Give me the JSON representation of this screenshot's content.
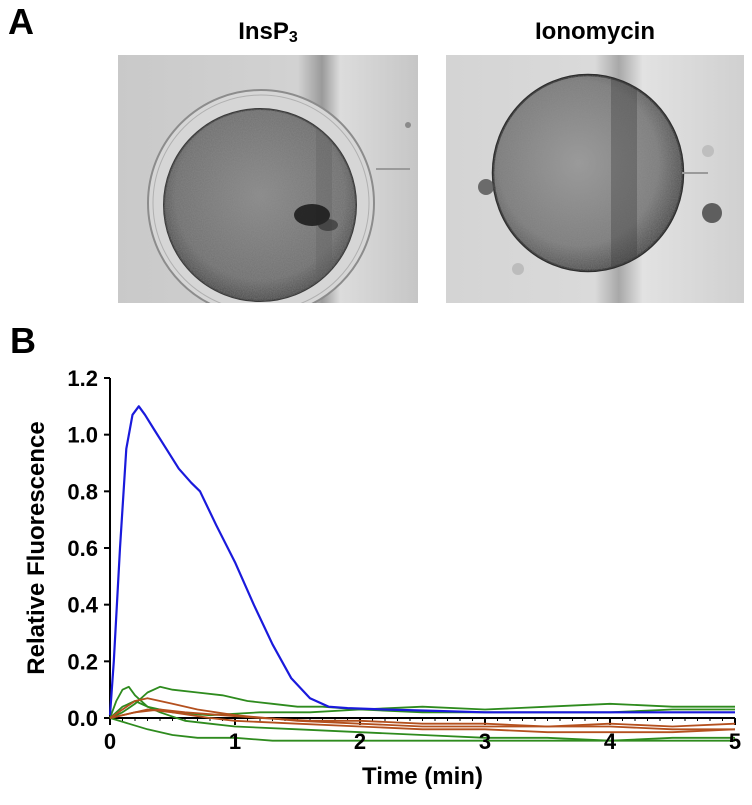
{
  "panel_a": {
    "letter": "A",
    "left_image": {
      "title": "InsP",
      "title_sub": "3"
    },
    "right_image": {
      "title": "Ionomycin"
    }
  },
  "panel_b": {
    "letter": "B"
  },
  "colors": {
    "insp3": "#1a1adc",
    "green": "#2e8b1e",
    "orange": "#b4501e",
    "axis": "#000000"
  },
  "chart_data": {
    "type": "line",
    "xlabel": "Time (min)",
    "ylabel": "Relative Fluorescence",
    "xlim": [
      0,
      5
    ],
    "ylim": [
      0,
      1.2
    ],
    "xticks": [
      "0",
      "1",
      "2",
      "3",
      "4",
      "5"
    ],
    "yticks": [
      "0.0",
      "0.2",
      "0.4",
      "0.6",
      "0.8",
      "1.0",
      "1.2"
    ],
    "grid": false,
    "series": [
      {
        "color": "#1a1adc",
        "x": [
          0,
          0.03,
          0.08,
          0.13,
          0.18,
          0.23,
          0.28,
          0.35,
          0.45,
          0.55,
          0.65,
          0.72,
          0.85,
          1.0,
          1.15,
          1.3,
          1.45,
          1.6,
          1.75,
          1.9,
          2.2,
          2.6,
          3.0,
          3.5,
          4.0,
          4.5,
          5.0
        ],
        "y": [
          0.01,
          0.2,
          0.6,
          0.95,
          1.07,
          1.1,
          1.07,
          1.02,
          0.95,
          0.88,
          0.83,
          0.8,
          0.68,
          0.55,
          0.4,
          0.26,
          0.14,
          0.07,
          0.04,
          0.035,
          0.03,
          0.025,
          0.02,
          0.02,
          0.02,
          0.02,
          0.02
        ]
      },
      {
        "color": "#2e8b1e",
        "x": [
          0,
          0.05,
          0.1,
          0.15,
          0.2,
          0.3,
          0.5,
          0.8,
          1.2,
          1.6,
          2.0,
          2.5,
          3.0,
          3.5,
          4.0,
          4.5,
          5.0
        ],
        "y": [
          0.0,
          0.06,
          0.1,
          0.11,
          0.08,
          0.04,
          0.02,
          0.01,
          0.02,
          0.02,
          0.03,
          0.04,
          0.03,
          0.04,
          0.05,
          0.04,
          0.04
        ]
      },
      {
        "color": "#2e8b1e",
        "x": [
          0,
          0.1,
          0.2,
          0.3,
          0.4,
          0.5,
          0.7,
          0.9,
          1.1,
          1.3,
          1.5,
          1.7,
          2.0,
          2.5,
          3.0,
          3.5,
          4.0,
          4.5,
          5.0
        ],
        "y": [
          0.0,
          0.02,
          0.05,
          0.09,
          0.11,
          0.1,
          0.09,
          0.08,
          0.06,
          0.05,
          0.04,
          0.04,
          0.03,
          0.02,
          0.02,
          0.02,
          0.02,
          0.03,
          0.03
        ]
      },
      {
        "color": "#2e8b1e",
        "x": [
          0,
          0.1,
          0.2,
          0.4,
          0.6,
          0.8,
          1.0,
          1.5,
          2.0,
          2.5,
          3.0,
          3.5,
          4.0,
          4.5,
          5.0
        ],
        "y": [
          0.0,
          0.04,
          0.06,
          0.02,
          -0.01,
          -0.02,
          -0.03,
          -0.04,
          -0.05,
          -0.06,
          -0.07,
          -0.07,
          -0.08,
          -0.07,
          -0.07
        ]
      },
      {
        "color": "#2e8b1e",
        "x": [
          0,
          0.15,
          0.3,
          0.5,
          0.7,
          1.0,
          1.3,
          1.6,
          2.0,
          2.5,
          3.0,
          3.5,
          4.0,
          4.5,
          5.0
        ],
        "y": [
          0.0,
          -0.02,
          -0.04,
          -0.06,
          -0.07,
          -0.07,
          -0.08,
          -0.08,
          -0.08,
          -0.08,
          -0.08,
          -0.08,
          -0.08,
          -0.08,
          -0.08
        ]
      },
      {
        "color": "#b4501e",
        "x": [
          0,
          0.1,
          0.2,
          0.3,
          0.5,
          0.7,
          1.0,
          1.5,
          2.0,
          2.5,
          3.0,
          3.5,
          4.0,
          4.5,
          5.0
        ],
        "y": [
          0.0,
          0.03,
          0.06,
          0.07,
          0.05,
          0.03,
          0.01,
          -0.01,
          -0.02,
          -0.03,
          -0.03,
          -0.03,
          -0.02,
          -0.03,
          -0.02
        ]
      },
      {
        "color": "#b4501e",
        "x": [
          0,
          0.1,
          0.3,
          0.5,
          0.8,
          1.0,
          1.5,
          2.0,
          2.5,
          3.0,
          3.5,
          4.0,
          4.5,
          5.0
        ],
        "y": [
          0.0,
          0.01,
          0.03,
          0.02,
          0.0,
          -0.01,
          -0.02,
          -0.03,
          -0.04,
          -0.04,
          -0.05,
          -0.05,
          -0.05,
          -0.04
        ]
      },
      {
        "color": "#b4501e",
        "x": [
          0,
          0.2,
          0.4,
          0.6,
          0.9,
          1.2,
          1.6,
          2.0,
          2.5,
          3.0,
          3.5,
          4.0,
          4.5,
          5.0
        ],
        "y": [
          0.0,
          0.02,
          0.03,
          0.02,
          0.01,
          0.0,
          -0.01,
          -0.01,
          -0.02,
          -0.02,
          -0.03,
          -0.03,
          -0.04,
          -0.04
        ]
      }
    ]
  }
}
